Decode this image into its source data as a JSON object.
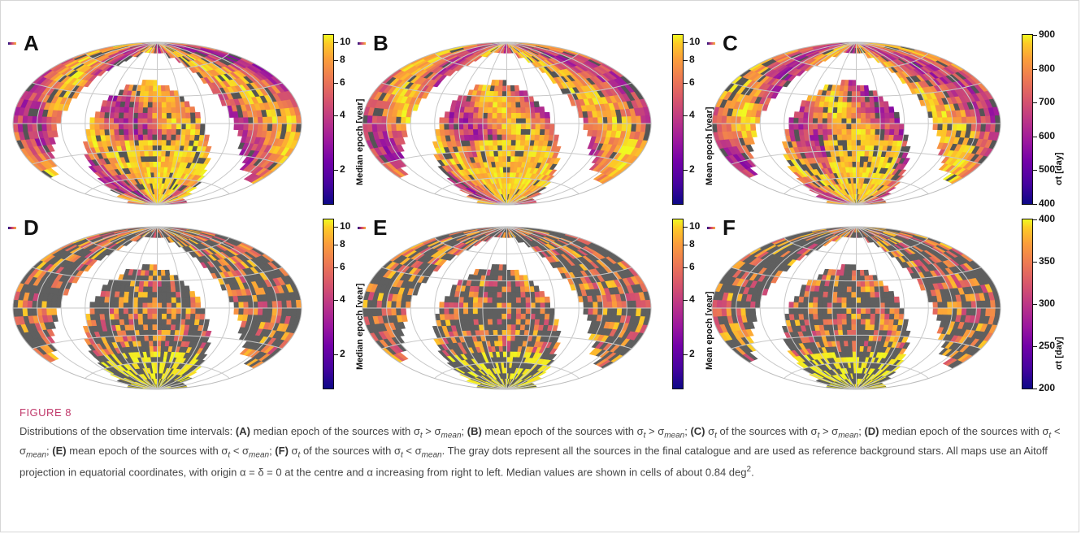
{
  "figure": {
    "title": "FIGURE 8",
    "caption_parts": [
      {
        "t": "Distributions of the observation time intervals: ",
        "b": false
      },
      {
        "t": "(A)",
        "b": true
      },
      {
        "t": " median epoch of the sources with σ",
        "b": false
      },
      {
        "t": "t",
        "sub": true
      },
      {
        "t": " > σ",
        "b": false
      },
      {
        "t": "mean",
        "sub": true
      },
      {
        "t": "; ",
        "b": false
      },
      {
        "t": "(B)",
        "b": true
      },
      {
        "t": " mean epoch of the sources with σ",
        "b": false
      },
      {
        "t": "t",
        "sub": true
      },
      {
        "t": " > σ",
        "b": false
      },
      {
        "t": "mean",
        "sub": true
      },
      {
        "t": "; ",
        "b": false
      },
      {
        "t": "(C)",
        "b": true
      },
      {
        "t": " σ",
        "b": false
      },
      {
        "t": "t",
        "sub": true
      },
      {
        "t": " of the sources with σ",
        "b": false
      },
      {
        "t": "t",
        "sub": true
      },
      {
        "t": " > σ",
        "b": false
      },
      {
        "t": "mean",
        "sub": true
      },
      {
        "t": "; ",
        "b": false
      },
      {
        "t": "(D)",
        "b": true
      },
      {
        "t": " median epoch of the sources with σ",
        "b": false
      },
      {
        "t": "t",
        "sub": true
      },
      {
        "t": " < σ",
        "b": false
      },
      {
        "t": "mean",
        "sub": true
      },
      {
        "t": "; ",
        "b": false
      },
      {
        "t": "(E)",
        "b": true
      },
      {
        "t": " mean epoch of the sources with σ",
        "b": false
      },
      {
        "t": "t",
        "sub": true
      },
      {
        "t": " < σ",
        "b": false
      },
      {
        "t": "mean",
        "sub": true
      },
      {
        "t": "; ",
        "b": false
      },
      {
        "t": "(F)",
        "b": true
      },
      {
        "t": " σ",
        "b": false
      },
      {
        "t": "t",
        "sub": true
      },
      {
        "t": " of the sources with σ",
        "b": false
      },
      {
        "t": "t",
        "sub": true
      },
      {
        "t": " < σ",
        "b": false
      },
      {
        "t": "mean",
        "sub": true
      },
      {
        "t": ". The gray dots represent all the sources in the final catalogue and are used as reference background stars. All maps use an Aitoff projection in equatorial coordinates, with origin α = δ = 0 at the centre and α increasing from right to left. Median values are shown in cells of about 0.84 deg",
        "b": false
      },
      {
        "t": "2",
        "sup": true
      },
      {
        "t": ".",
        "b": false
      }
    ]
  },
  "chart_data": [
    {
      "type": "heatmap",
      "panel": "A",
      "colorbar_label": "Median epoch [year]",
      "ticks": [
        "10",
        "8",
        "6",
        "4",
        "2"
      ],
      "tick_values": [
        10,
        8,
        6,
        4,
        2
      ],
      "scale": "log",
      "range": [
        1.3,
        11
      ],
      "regime": "high"
    },
    {
      "type": "heatmap",
      "panel": "B",
      "colorbar_label": "Mean epoch [year]",
      "ticks": [
        "10",
        "8",
        "6",
        "4",
        "2"
      ],
      "tick_values": [
        10,
        8,
        6,
        4,
        2
      ],
      "scale": "log",
      "range": [
        1.3,
        11
      ],
      "regime": "high"
    },
    {
      "type": "heatmap",
      "panel": "C",
      "colorbar_label": "σt [day]",
      "ticks": [
        "900",
        "800",
        "700",
        "600",
        "500",
        "400"
      ],
      "tick_values": [
        900,
        800,
        700,
        600,
        500,
        400
      ],
      "scale": "linear",
      "range": [
        400,
        900
      ],
      "regime": "high"
    },
    {
      "type": "heatmap",
      "panel": "D",
      "colorbar_label": "Median epoch [year]",
      "ticks": [
        "10",
        "8",
        "6",
        "4",
        "2"
      ],
      "tick_values": [
        10,
        8,
        6,
        4,
        2
      ],
      "scale": "log",
      "range": [
        1.3,
        11
      ],
      "regime": "low"
    },
    {
      "type": "heatmap",
      "panel": "E",
      "colorbar_label": "Mean epoch [year]",
      "ticks": [
        "10",
        "8",
        "6",
        "4",
        "2"
      ],
      "tick_values": [
        10,
        8,
        6,
        4,
        2
      ],
      "scale": "log",
      "range": [
        1.3,
        11
      ],
      "regime": "low"
    },
    {
      "type": "heatmap",
      "panel": "F",
      "colorbar_label": "σt [day]",
      "ticks": [
        "400",
        "350",
        "300",
        "250",
        "200"
      ],
      "tick_values": [
        400,
        350,
        300,
        250,
        200
      ],
      "scale": "linear",
      "range": [
        200,
        400
      ],
      "regime": "low"
    }
  ],
  "colors": {
    "gray_background": "#595959",
    "grid": "#c8c8c8",
    "caption_title": "#c0396b",
    "colormap": "plasma"
  }
}
